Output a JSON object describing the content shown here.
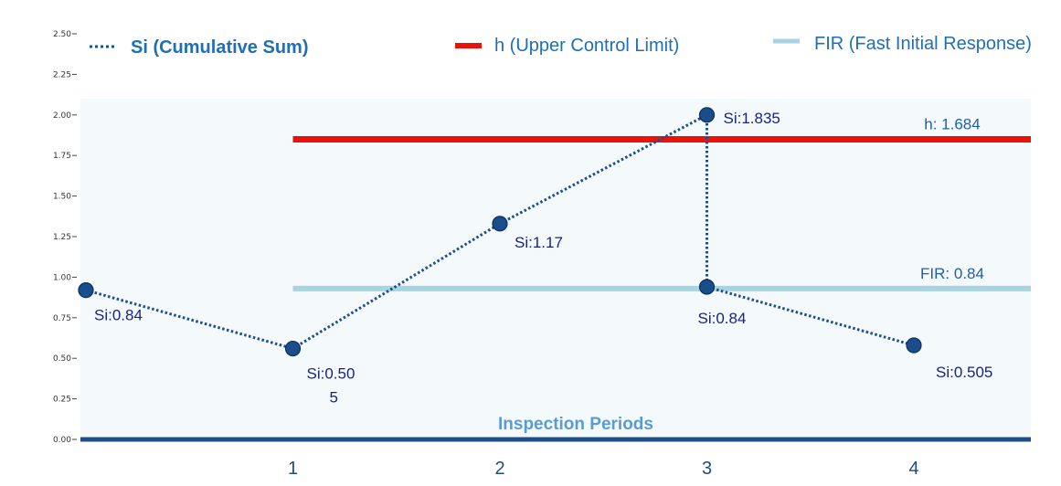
{
  "chart_data": {
    "type": "line",
    "xlabel": "Inspection Periods",
    "categories": [
      "1",
      "2",
      "3",
      "4"
    ],
    "ylim": [
      0,
      2.5
    ],
    "yticks": [
      "0.00",
      "0.25",
      "0.50",
      "0.75",
      "1.00",
      "1.25",
      "1.50",
      "1.75",
      "2.00",
      "2.25",
      "2.50"
    ],
    "legend_position": "top",
    "series": [
      {
        "name": "Si (Cumulative Sum)",
        "style": "dotted",
        "color": "#1f4e8c",
        "points": [
          {
            "x": 0,
            "y": 0.92,
            "label": "Si:0.84"
          },
          {
            "x": 1,
            "y": 0.56,
            "label": "Si:0.50",
            "label2": "5"
          },
          {
            "x": 2,
            "y": 1.33,
            "label": "Si:1.17"
          },
          {
            "x": 3,
            "y": 2.0,
            "label": "Si:1.835"
          },
          {
            "x": 3,
            "y": 0.94,
            "label": "Si:0.84"
          },
          {
            "x": 4,
            "y": 0.58,
            "label": "Si:0.505"
          }
        ]
      }
    ],
    "reference_lines": [
      {
        "name": "h (Upper Control Limit)",
        "y": 1.85,
        "x_start": 1,
        "label": "h: 1.684",
        "color": "#e8140c"
      },
      {
        "name": "FIR (Fast Initial Response)",
        "y": 0.93,
        "x_start": 1,
        "label": "FIR: 0.84",
        "color": "#a8d4e2"
      }
    ]
  }
}
